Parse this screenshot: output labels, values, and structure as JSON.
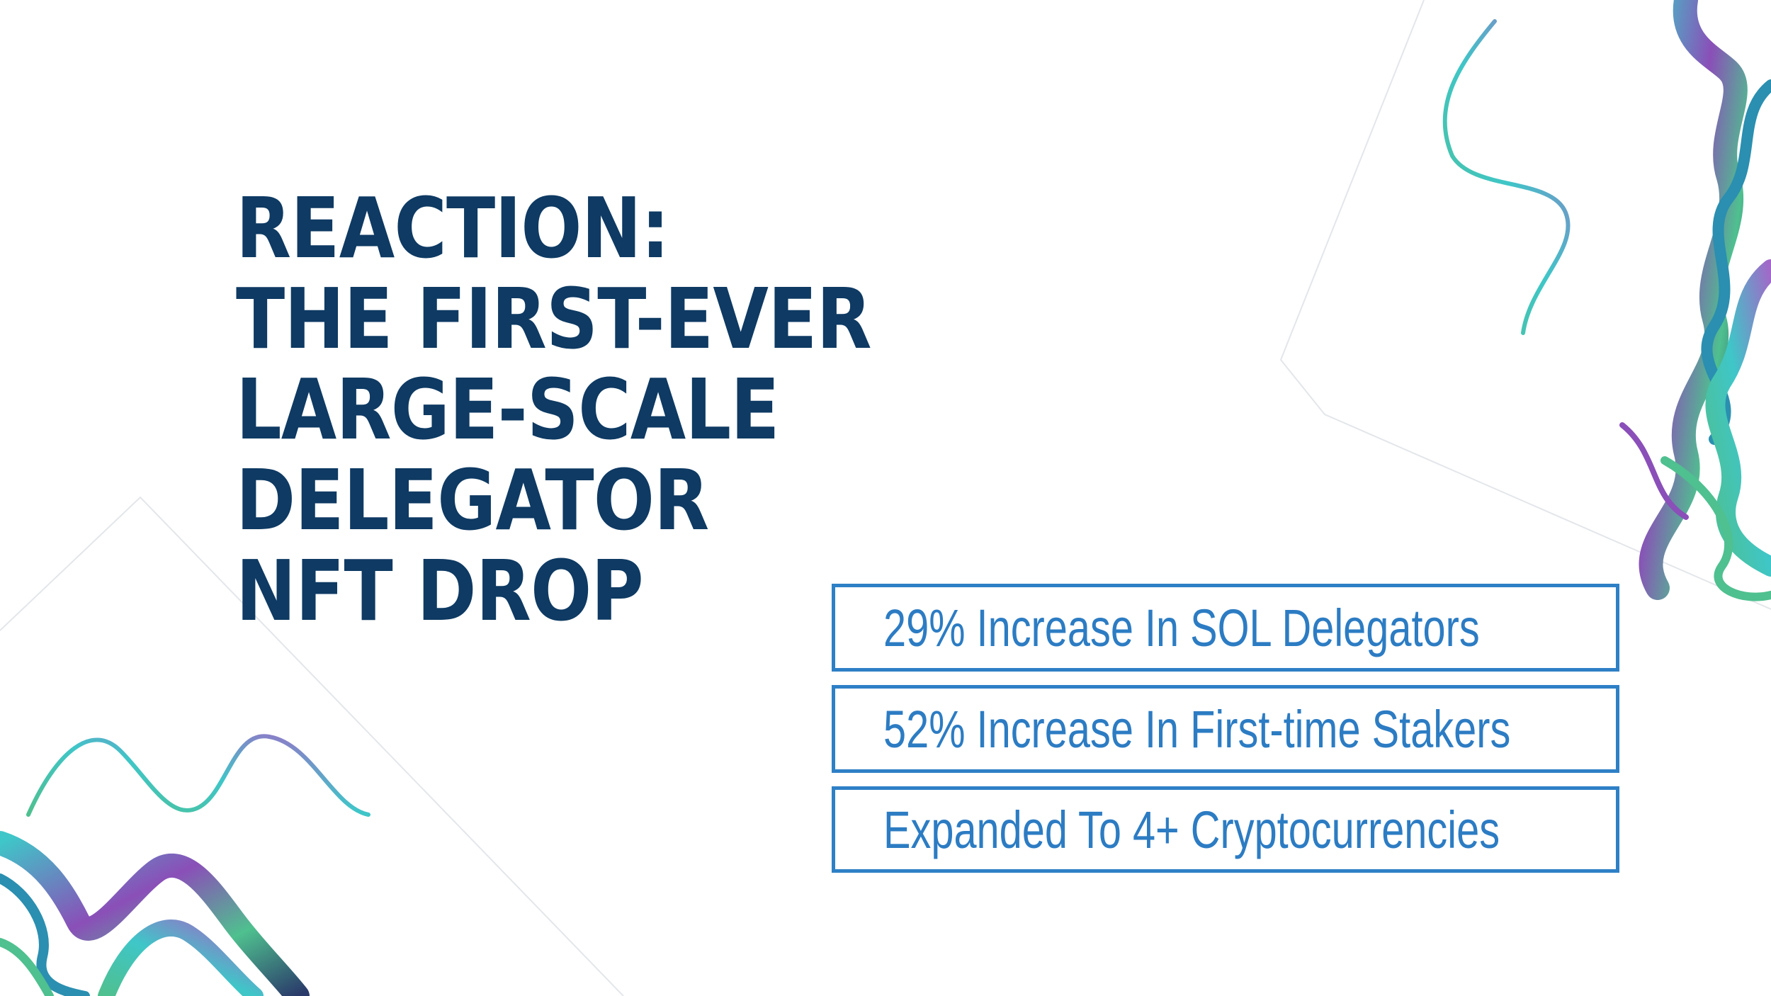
{
  "title": {
    "lines": [
      "REACTION:",
      "THE FIRST-EVER",
      "LARGE-SCALE",
      "DELEGATOR",
      "NFT DROP"
    ]
  },
  "stats": [
    "29% Increase In SOL Delegators",
    "52% Increase In First-time Stakers",
    "Expanded To 4+ Cryptocurrencies"
  ],
  "colors": {
    "title": "#0e3a63",
    "stat_text": "#2c7cc3",
    "stat_border": "#2e80c6",
    "decor_teal": "#3fc6c8",
    "decor_purple": "#8a4fb8",
    "decor_green": "#4fc08f"
  }
}
